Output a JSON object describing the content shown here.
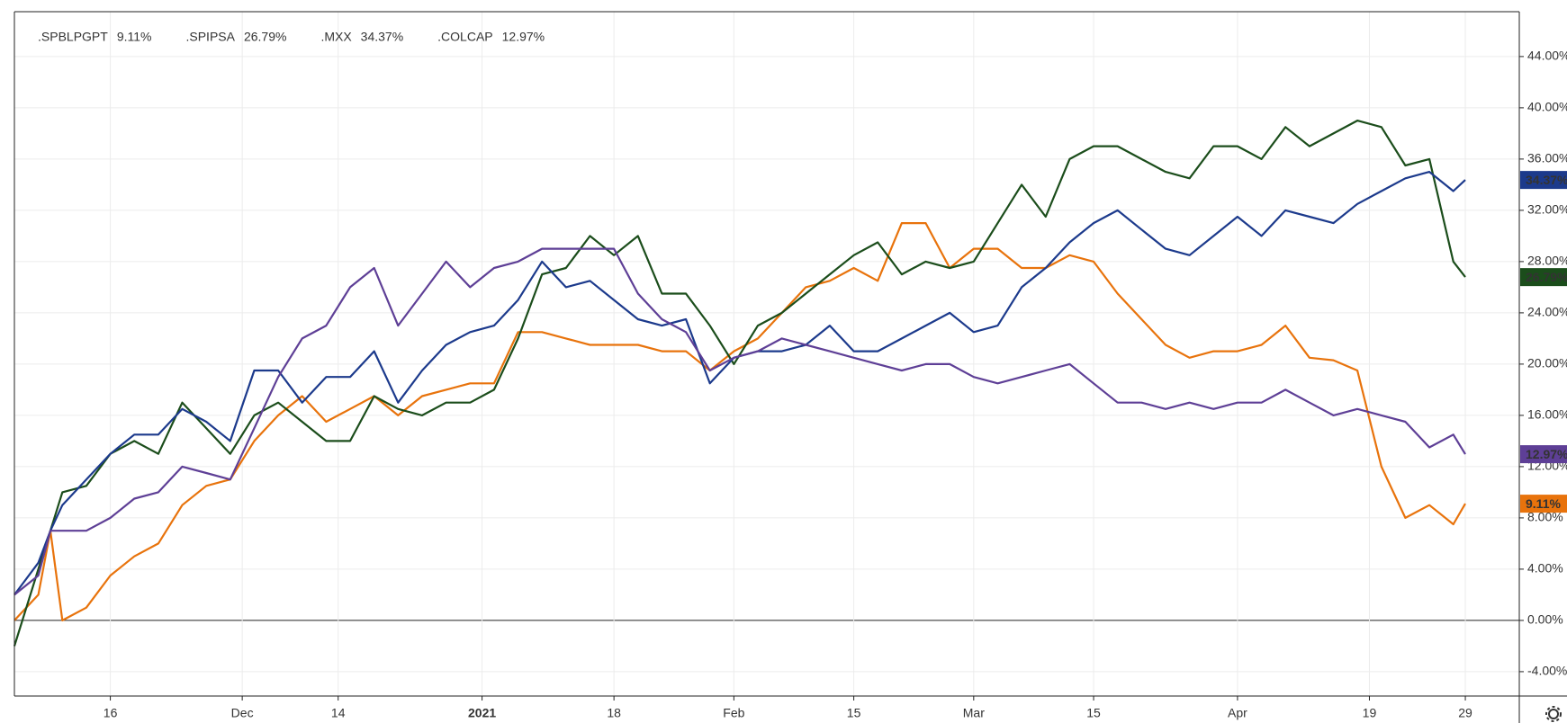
{
  "chart_data": {
    "type": "line",
    "x": [
      0,
      2,
      3,
      4,
      6,
      8,
      10,
      12,
      14,
      16,
      18,
      20,
      22,
      24,
      26,
      28,
      30,
      32,
      34,
      36,
      38,
      40,
      42,
      44,
      46,
      48,
      50,
      52,
      54,
      56,
      58,
      60,
      62,
      64,
      66,
      68,
      70,
      72,
      74,
      76,
      78,
      80,
      82,
      84,
      86,
      88,
      90,
      92,
      94,
      96,
      98,
      100,
      102,
      104,
      106,
      108,
      110,
      112,
      114,
      116,
      118,
      120,
      121
    ],
    "xlim": [
      0,
      125.5
    ],
    "xticks": [
      {
        "value": 8,
        "label": "16"
      },
      {
        "value": 19,
        "label": "Dec"
      },
      {
        "value": 27,
        "label": "14"
      },
      {
        "value": 39,
        "label": "2021"
      },
      {
        "value": 50,
        "label": "18"
      },
      {
        "value": 60,
        "label": "Feb"
      },
      {
        "value": 70,
        "label": "15"
      },
      {
        "value": 80,
        "label": "Mar"
      },
      {
        "value": 90,
        "label": "15"
      },
      {
        "value": 102,
        "label": "Apr"
      },
      {
        "value": 113,
        "label": "19"
      },
      {
        "value": 121,
        "label": "29"
      }
    ],
    "ylim": [
      -5.9,
      47.5
    ],
    "yticks": [
      {
        "value": -4,
        "label": "-4.00%"
      },
      {
        "value": 0,
        "label": "0.00%"
      },
      {
        "value": 4,
        "label": "4.00%"
      },
      {
        "value": 8,
        "label": "8.00%"
      },
      {
        "value": 12,
        "label": "12.00%"
      },
      {
        "value": 16,
        "label": "16.00%"
      },
      {
        "value": 20,
        "label": "20.00%"
      },
      {
        "value": 24,
        "label": "24.00%"
      },
      {
        "value": 28,
        "label": "28.00%"
      },
      {
        "value": 32,
        "label": "32.00%"
      },
      {
        "value": 36,
        "label": "36.00%"
      },
      {
        "value": 40,
        "label": "40.00%"
      },
      {
        "value": 44,
        "label": "44.00%"
      }
    ],
    "grid": true,
    "legend": "top-left",
    "series": [
      {
        "name": ".SPBLPGPT",
        "color": "#e8730c",
        "last_label": "9.11%",
        "values": [
          0,
          2,
          7,
          0,
          1,
          3.5,
          5,
          6,
          9,
          10.5,
          11,
          14,
          16,
          17.5,
          15.5,
          16.5,
          17.5,
          16,
          17.5,
          18,
          18.5,
          18.5,
          22.5,
          22.5,
          22,
          21.5,
          21.5,
          21.5,
          21,
          21,
          19.5,
          21,
          22,
          24,
          26,
          26.5,
          27.5,
          26.5,
          31,
          31,
          27.5,
          29,
          29,
          27.5,
          27.5,
          28.5,
          28,
          25.5,
          23.5,
          21.5,
          20.5,
          21,
          21,
          21.5,
          23,
          20.5,
          20.3,
          19.5,
          12,
          8,
          9,
          7.5,
          9.11
        ]
      },
      {
        "name": ".SPIPSA",
        "color": "#1b4d1b",
        "last_label": "26.79%",
        "values": [
          -2,
          4,
          7,
          10,
          10.5,
          13,
          14,
          13,
          17,
          15,
          13,
          16,
          17,
          15.5,
          14,
          14,
          17.5,
          16.5,
          16,
          17,
          17,
          18,
          22,
          27,
          27.5,
          30,
          28.5,
          30,
          25.5,
          25.5,
          23,
          20,
          23,
          24,
          25.5,
          27,
          28.5,
          29.5,
          27,
          28,
          27.5,
          28,
          31,
          34,
          31.5,
          36,
          37,
          37,
          36,
          35,
          34.5,
          37,
          37,
          36,
          38.5,
          37,
          38,
          39,
          38.5,
          35.5,
          36,
          28,
          26.79
        ]
      },
      {
        "name": ".MXX",
        "color": "#1c3a8c",
        "last_label": "34.37%",
        "values": [
          2,
          4.5,
          7,
          9,
          11,
          13,
          14.5,
          14.5,
          16.5,
          15.5,
          14,
          19.5,
          19.5,
          17,
          19,
          19,
          21,
          17,
          19.5,
          21.5,
          22.5,
          23,
          25,
          28,
          26,
          26.5,
          25,
          23.5,
          23,
          23.5,
          18.5,
          20.5,
          21,
          21,
          21.5,
          23,
          21,
          21,
          22,
          23,
          24,
          22.5,
          23,
          26,
          27.5,
          29.5,
          31,
          32,
          30.5,
          29,
          28.5,
          30,
          31.5,
          30,
          32,
          31.5,
          31,
          32.5,
          33.5,
          34.5,
          35,
          33.5,
          34.37
        ]
      },
      {
        "name": ".COLCAP",
        "color": "#5e3f96",
        "last_label": "12.97%",
        "values": [
          2,
          3.5,
          7,
          7,
          7,
          8,
          9.5,
          10,
          12,
          11.5,
          11,
          15,
          19,
          22,
          23,
          26,
          27.5,
          23,
          25.5,
          28,
          26,
          27.5,
          28,
          29,
          29,
          29,
          29,
          25.5,
          23.5,
          22.5,
          19.5,
          20.5,
          21,
          22,
          21.5,
          21,
          20.5,
          20,
          19.5,
          20,
          20,
          19,
          18.5,
          19,
          19.5,
          20,
          18.5,
          17,
          17,
          16.5,
          17,
          16.5,
          17,
          17,
          18,
          17,
          16,
          16.5,
          16,
          15.5,
          13.5,
          14.5,
          12.97
        ]
      }
    ]
  }
}
